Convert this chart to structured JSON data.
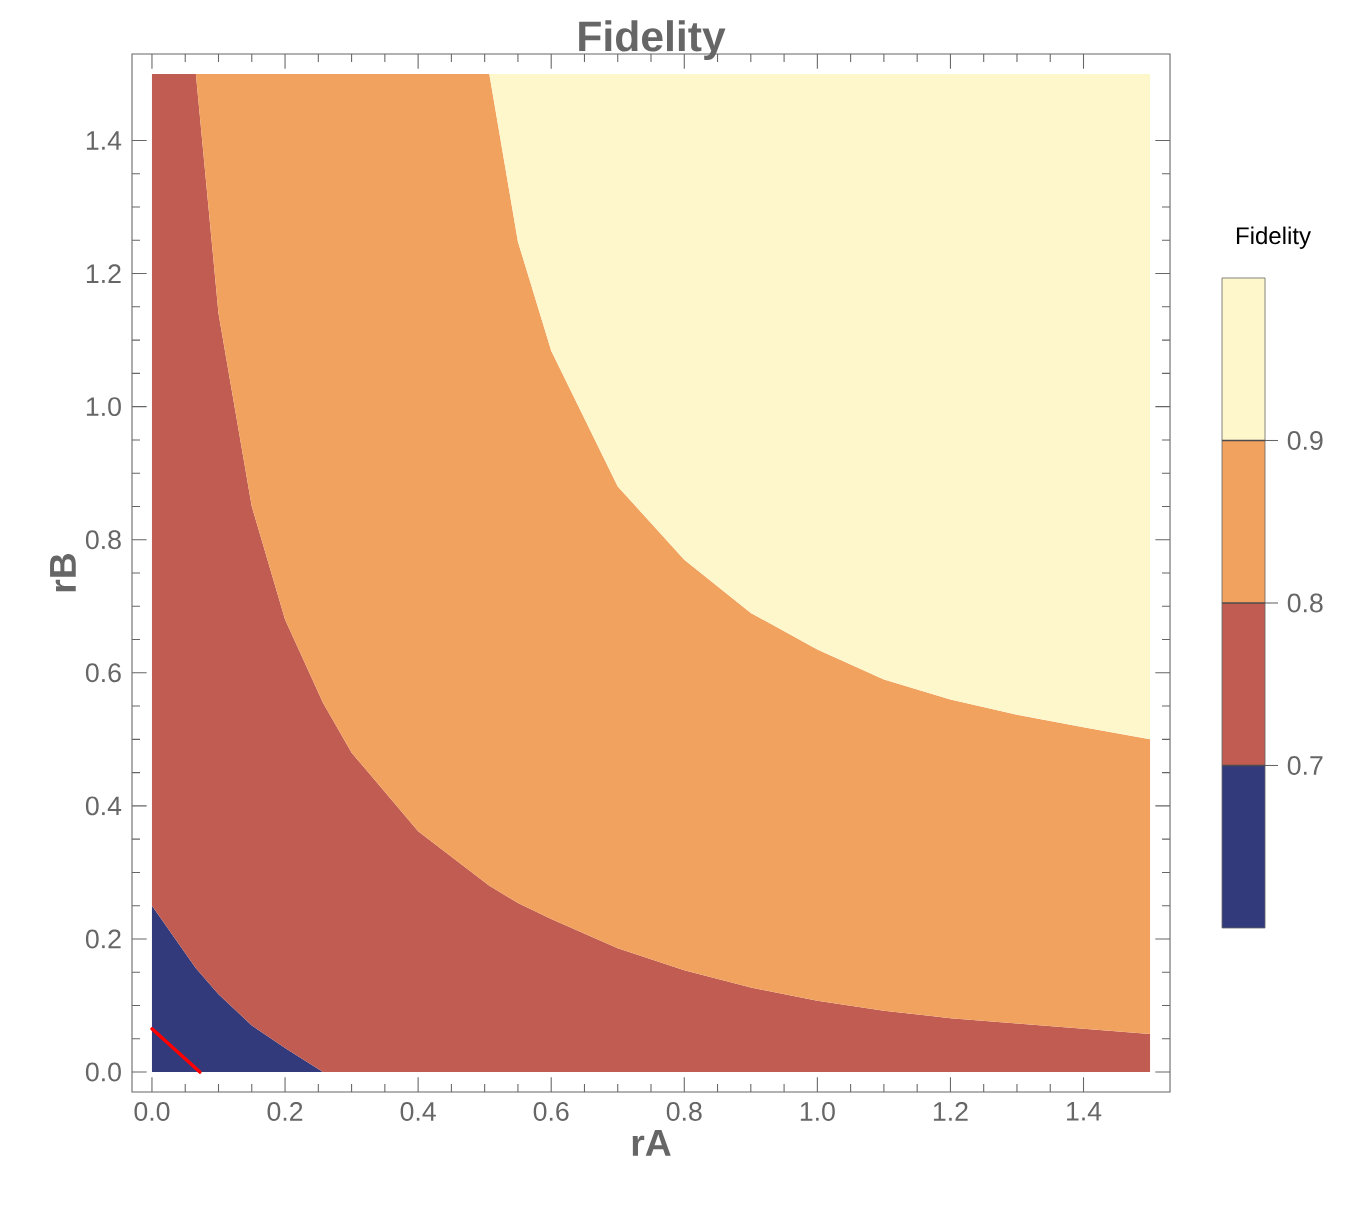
{
  "chart_data": {
    "type": "area",
    "stacked": true,
    "title": "Fidelity",
    "xlabel": "rA",
    "ylabel": "rB",
    "clabel": "Fidelity",
    "xlim": [
      -0.03,
      1.53
    ],
    "ylim": [
      -0.03,
      1.53
    ],
    "xticks": [
      {
        "value": 0,
        "label": "0.0"
      },
      0.2,
      0.4,
      0.6,
      0.8,
      {
        "value": 1,
        "label": "1.0"
      },
      1.2,
      1.4
    ],
    "yticks": [
      {
        "value": 0,
        "label": "0.0"
      },
      0.2,
      0.4,
      0.6,
      0.8,
      {
        "value": 1,
        "label": "1.0"
      },
      1.2,
      1.4
    ],
    "clim": [
      0.6,
      1.0
    ],
    "cticks": [
      0.7,
      0.8,
      0.9
    ],
    "x": [
      0,
      0.066,
      0.1,
      0.15,
      0.2,
      0.257,
      0.3,
      0.4,
      0.507,
      0.55,
      0.6,
      0.7,
      0.8,
      0.9,
      1.0,
      1.1,
      1.2,
      1.3,
      1.4,
      1.5
    ],
    "series": [
      {
        "color": "#333a7c",
        "values": [
          0.25,
          0.156,
          0.117,
          0.07,
          0.036,
          0,
          0,
          0,
          0,
          0,
          0,
          0,
          0,
          0,
          0,
          0,
          0,
          0,
          0,
          0
        ]
      },
      {
        "color": "#c05c51",
        "values": [
          1.25,
          1.344,
          1.023,
          0.78,
          0.644,
          0.555,
          0.48,
          0.362,
          0.28,
          0.254,
          0.23,
          0.186,
          0.153,
          0.127,
          0.107,
          0.092,
          0.081,
          0.073,
          0.065,
          0.057
        ]
      },
      {
        "color": "#f2a25f",
        "values": [
          0,
          0,
          0.36,
          0.65,
          0.82,
          0.945,
          1.02,
          1.138,
          1.22,
          0.994,
          0.854,
          0.694,
          0.617,
          0.563,
          0.528,
          0.498,
          0.479,
          0.464,
          0.453,
          0.443
        ]
      },
      {
        "color": "#fff7cc",
        "values": [
          0,
          0,
          0,
          0,
          0,
          0,
          0,
          0,
          0,
          0.252,
          0.416,
          0.62,
          0.73,
          0.81,
          0.865,
          0.91,
          0.94,
          0.963,
          0.982,
          1.0
        ]
      },
      {
        "type": "line",
        "color": "#ff0000",
        "x": [
          0,
          0.072
        ],
        "values": [
          0.065,
          0
        ]
      }
    ]
  }
}
